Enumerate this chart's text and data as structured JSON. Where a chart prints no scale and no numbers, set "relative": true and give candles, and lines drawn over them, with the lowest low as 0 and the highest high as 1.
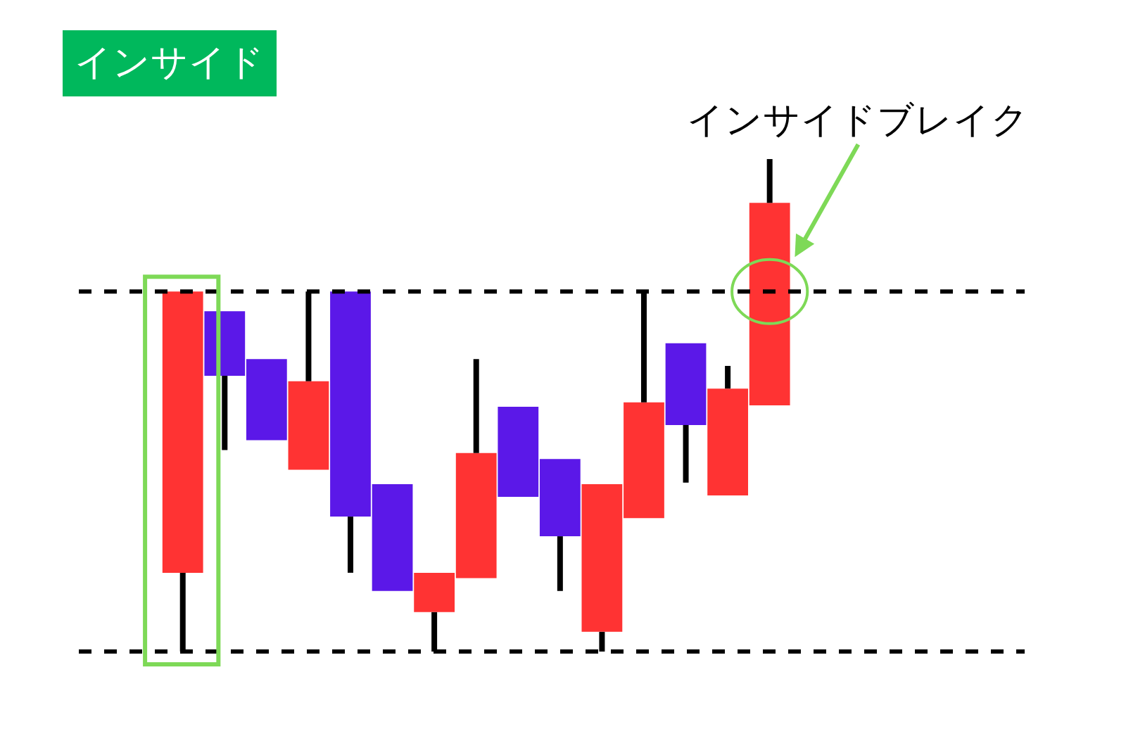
{
  "chart_data": {
    "type": "candlestick",
    "relative": true,
    "title": "インサイド",
    "categories": [
      null,
      null,
      null,
      null,
      null,
      null,
      null,
      null,
      null,
      null,
      null,
      null,
      null,
      null,
      null
    ],
    "ohlc": [
      [
        0.16,
        0.731,
        0,
        0.731
      ],
      [
        0.691,
        0.691,
        0.409,
        0.56
      ],
      [
        0.594,
        0.594,
        0.429,
        0.429
      ],
      [
        0.369,
        0.731,
        0.369,
        0.549
      ],
      [
        0.731,
        0.731,
        0.16,
        0.274
      ],
      [
        0.34,
        0.34,
        0.123,
        0.123
      ],
      [
        0.08,
        0.16,
        0,
        0.16
      ],
      [
        0.149,
        0.594,
        0.149,
        0.403
      ],
      [
        0.497,
        0.497,
        0.314,
        0.314
      ],
      [
        0.391,
        0.391,
        0.123,
        0.234
      ],
      [
        0.04,
        0.34,
        0,
        0.34
      ],
      [
        0.271,
        0.731,
        0.271,
        0.506
      ],
      [
        0.626,
        0.626,
        0.343,
        0.46
      ],
      [
        0.317,
        0.58,
        0.317,
        0.534
      ],
      [
        0.5,
        1,
        0.5,
        0.911
      ]
    ],
    "colors": [
      "#ff3333",
      "#5b18e8",
      "#5b18e8",
      "#ff3333",
      "#5b18e8",
      "#5b18e8",
      "#ff3333",
      "#ff3333",
      "#5b18e8",
      "#5b18e8",
      "#ff3333",
      "#ff3333",
      "#5b18e8",
      "#ff3333",
      "#ff3333"
    ],
    "ref_lines": [
      {
        "axis": "y",
        "value": 0.731,
        "color": "#000000",
        "line_style": "dashed"
      },
      {
        "axis": "y",
        "value": 0,
        "color": "#000000",
        "line_style": "dashed"
      }
    ],
    "annotations": [
      "インサイドブレイク"
    ]
  }
}
